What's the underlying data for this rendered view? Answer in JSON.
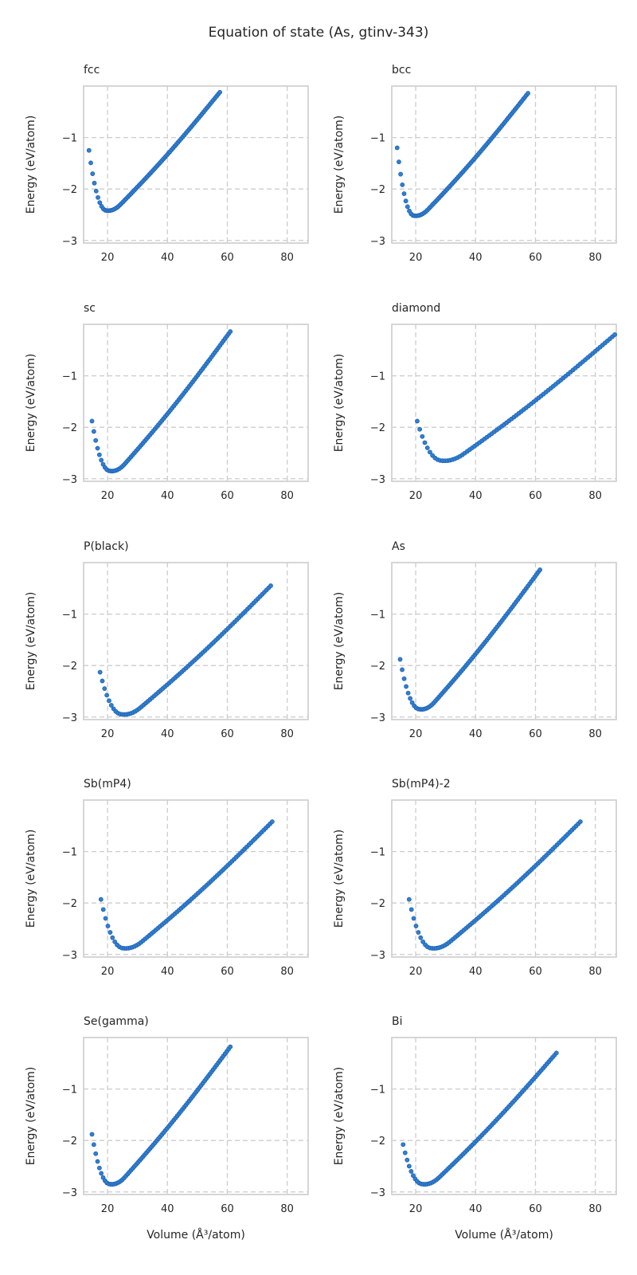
{
  "figure": {
    "title": "Equation of state (As, gtinv-343)"
  },
  "chart_data": {
    "type": "scatter",
    "grid": true,
    "marker_color": "#2f80d1",
    "marker_edge_color": "#1a56a8",
    "axis_labels": {
      "ylabel": "Energy (eV/atom)",
      "xlabel": "Volume (Å³/atom)"
    },
    "xlim": [
      12,
      87
    ],
    "ylim": [
      -3.05,
      0.0
    ],
    "xticks": [
      20,
      40,
      60,
      80
    ],
    "yticks": [
      -1,
      -2,
      -3
    ],
    "panels": [
      {
        "title": "fcc",
        "x_min": 13.8,
        "x_max": 57.5,
        "v0": 19.8,
        "e0": -2.42,
        "e_start": -1.25,
        "e_end": -0.12
      },
      {
        "title": "bcc",
        "x_min": 13.8,
        "x_max": 57.5,
        "v0": 19.6,
        "e0": -2.52,
        "e_start": -1.2,
        "e_end": -0.14
      },
      {
        "title": "sc",
        "x_min": 14.8,
        "x_max": 61.0,
        "v0": 21.0,
        "e0": -2.85,
        "e_start": -1.88,
        "e_end": -0.14
      },
      {
        "title": "diamond",
        "x_min": 20.5,
        "x_max": 86.5,
        "v0": 29.0,
        "e0": -2.65,
        "e_start": -1.88,
        "e_end": -0.2
      },
      {
        "title": "P(black)",
        "x_min": 17.5,
        "x_max": 74.5,
        "v0": 25.0,
        "e0": -2.95,
        "e_start": -2.13,
        "e_end": -0.45
      },
      {
        "title": "As",
        "x_min": 14.8,
        "x_max": 61.5,
        "v0": 21.5,
        "e0": -2.85,
        "e_start": -1.88,
        "e_end": -0.14
      },
      {
        "title": "Sb(mP4)",
        "x_min": 17.8,
        "x_max": 75.0,
        "v0": 25.5,
        "e0": -2.88,
        "e_start": -1.93,
        "e_end": -0.42
      },
      {
        "title": "Sb(mP4)-2",
        "x_min": 17.8,
        "x_max": 75.0,
        "v0": 25.5,
        "e0": -2.88,
        "e_start": -1.93,
        "e_end": -0.42
      },
      {
        "title": "Se(gamma)",
        "x_min": 14.8,
        "x_max": 61.0,
        "v0": 21.0,
        "e0": -2.85,
        "e_start": -1.88,
        "e_end": -0.18
      },
      {
        "title": "Bi",
        "x_min": 15.8,
        "x_max": 67.0,
        "v0": 22.5,
        "e0": -2.85,
        "e_start": -2.08,
        "e_end": -0.3
      }
    ]
  }
}
